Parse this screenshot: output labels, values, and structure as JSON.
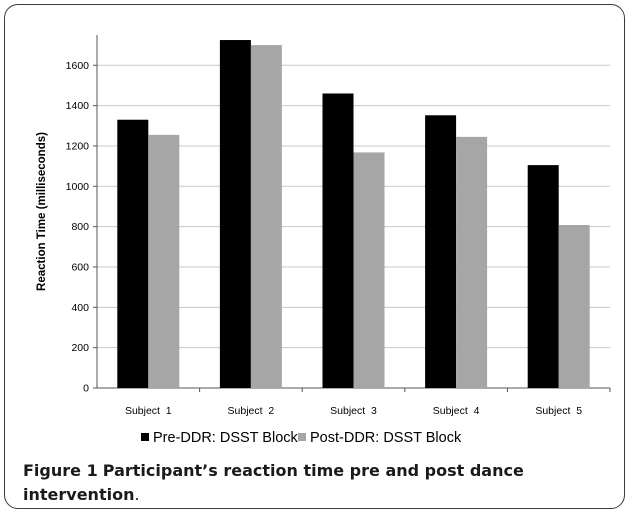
{
  "chart_data": {
    "type": "bar",
    "categories": [
      "Subject  1",
      "Subject  2",
      "Subject  3",
      "Subject  4",
      "Subject  5"
    ],
    "series": [
      {
        "name": "Pre-DDR: DSST Block",
        "values": [
          1330,
          1725,
          1460,
          1352,
          1105
        ],
        "color": "#000000"
      },
      {
        "name": "Post-DDR: DSST Block",
        "values": [
          1255,
          1700,
          1168,
          1245,
          808
        ],
        "color": "#a6a6a6"
      }
    ],
    "ylabel": "Reaction Time (milliseconds)",
    "xlabel": "",
    "ylim": [
      0,
      1750
    ],
    "yticks": [
      0,
      200,
      400,
      600,
      800,
      1000,
      1200,
      1400,
      1600
    ],
    "grid": true,
    "legend_position": "bottom"
  },
  "caption": {
    "label": "Figure 1",
    "text": "Participant’s reaction time pre and post dance intervention",
    "period": "."
  }
}
